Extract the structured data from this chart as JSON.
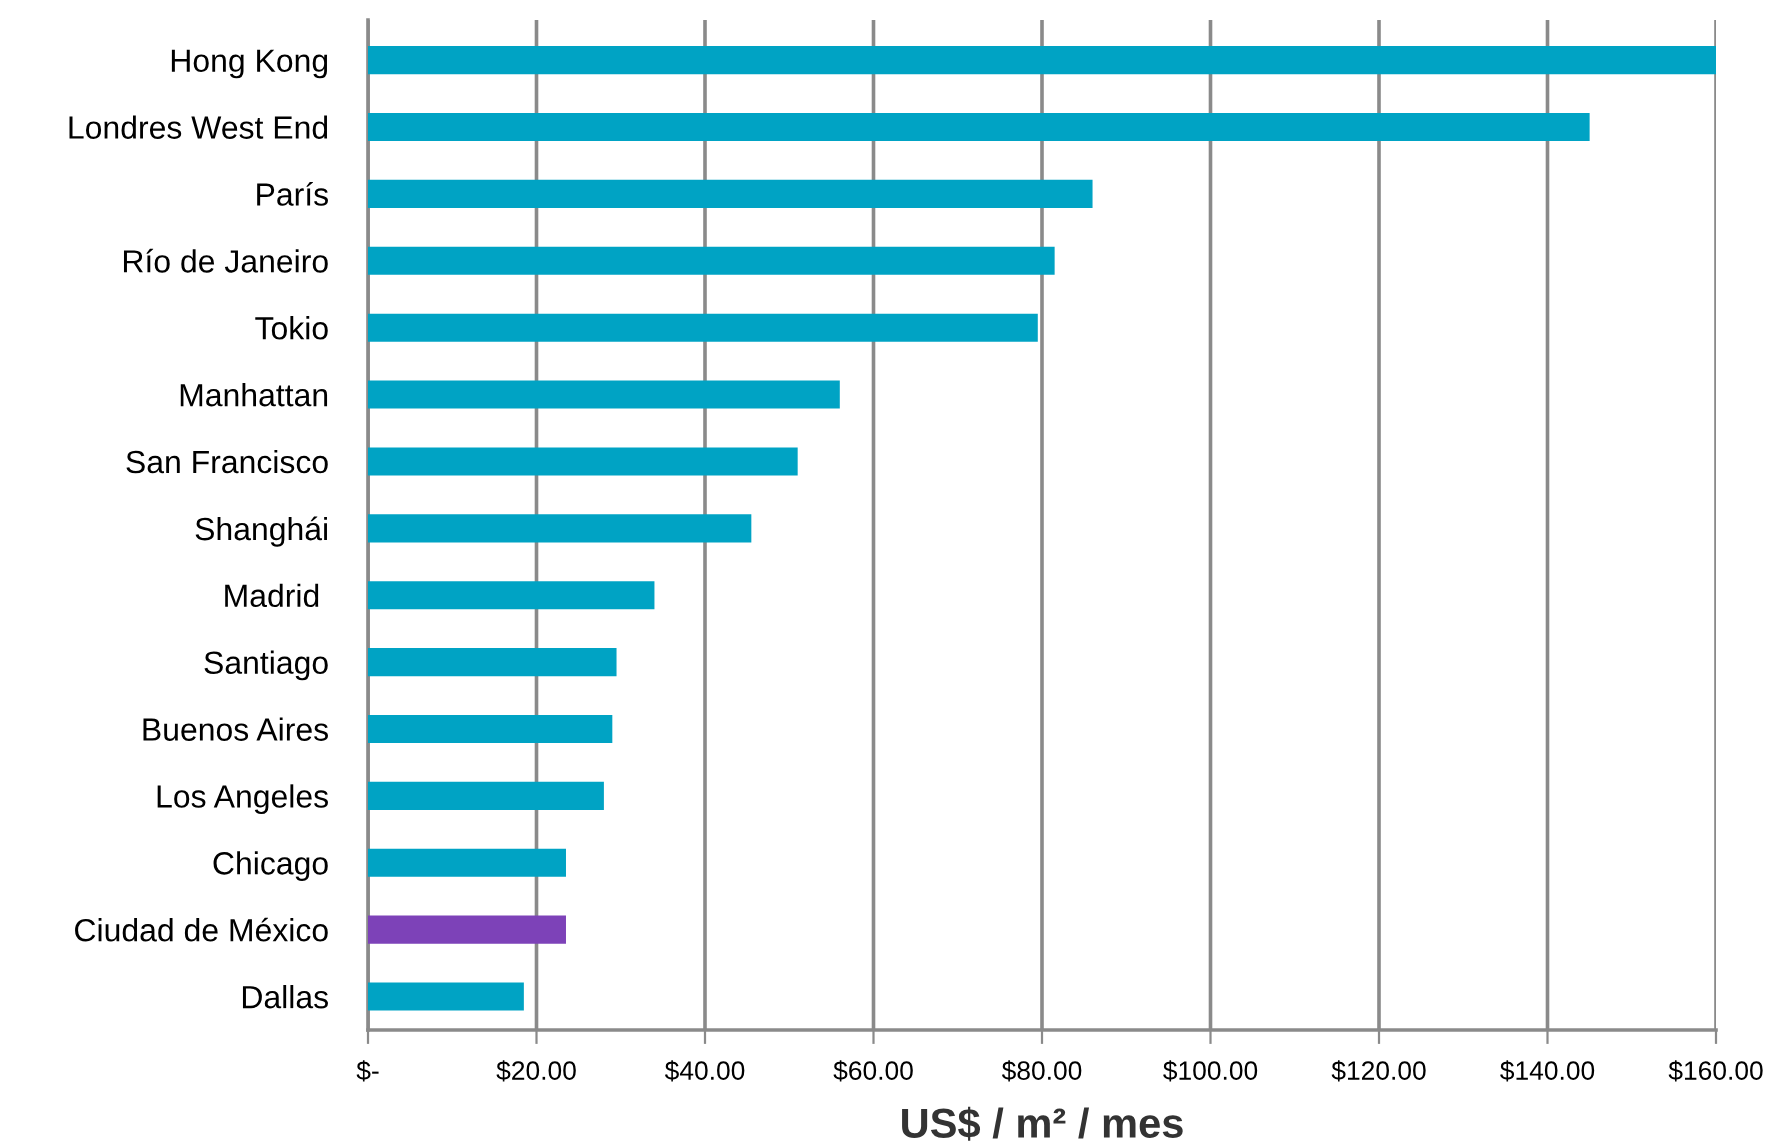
{
  "chart_data": {
    "type": "bar",
    "orientation": "horizontal",
    "xlabel": "US$ / m² / mes",
    "categories": [
      "Hong Kong",
      "Londres West End",
      "París",
      "Río de Janeiro",
      "Tokio",
      "Manhattan",
      "San Francisco",
      "Shanghái",
      "Madrid ",
      "Santiago",
      "Buenos Aires",
      "Los Angeles",
      "Chicago",
      "Ciudad de México",
      "Dallas"
    ],
    "values": [
      160,
      145,
      86,
      81.5,
      79.5,
      56,
      51,
      45.5,
      34,
      29.5,
      29,
      28,
      23.5,
      23.5,
      18.5
    ],
    "colors": [
      "#00a3c4",
      "#00a3c4",
      "#00a3c4",
      "#00a3c4",
      "#00a3c4",
      "#00a3c4",
      "#00a3c4",
      "#00a3c4",
      "#00a3c4",
      "#00a3c4",
      "#00a3c4",
      "#00a3c4",
      "#00a3c4",
      "#7d42b8",
      "#00a3c4"
    ],
    "xlim": [
      0,
      160
    ],
    "xticks": [
      {
        "value": 0,
        "label": "$-"
      },
      {
        "value": 20,
        "label": "$20.00"
      },
      {
        "value": 40,
        "label": "$40.00"
      },
      {
        "value": 60,
        "label": "$60.00"
      },
      {
        "value": 80,
        "label": "$80.00"
      },
      {
        "value": 100,
        "label": "$100.00"
      },
      {
        "value": 120,
        "label": "$120.00"
      },
      {
        "value": 140,
        "label": "$140.00"
      },
      {
        "value": 160,
        "label": "$160.00"
      }
    ],
    "grid": "x",
    "legend": false
  }
}
